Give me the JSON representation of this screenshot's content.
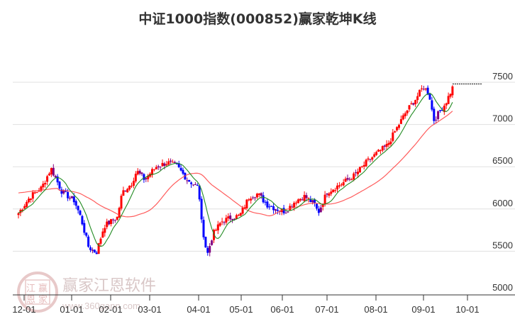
{
  "title": "中证1000指数(000852)赢家乾坤K线",
  "watermark": {
    "name": "赢家江恩软件",
    "url": "www.360gann.com",
    "seal": [
      "江",
      "赢",
      "恩",
      "家"
    ]
  },
  "colors": {
    "up": "#ff0000",
    "down": "#0000ff",
    "neutral": "#800080",
    "ma_short": "#228b22",
    "ma_long": "#ff4040",
    "grid": "#e0e0e0",
    "axis": "#333333",
    "last_price_line": "#000000"
  },
  "chart_data": {
    "type": "candlestick",
    "title": "中证1000指数(000852)赢家乾坤K线",
    "xlabel": "",
    "ylabel": "",
    "ylim": [
      5000,
      7600
    ],
    "y_ticks": [
      5000,
      5500,
      6000,
      6500,
      7000,
      7500
    ],
    "x_ticks": [
      "12-01",
      "01-01",
      "02-01",
      "03-01",
      "04-01",
      "05-01",
      "06-01",
      "07-01",
      "08-01",
      "09-01",
      "10-01"
    ],
    "grid": true,
    "legend": "none",
    "last_price": 7480,
    "series": [
      {
        "name": "close_path_keypoints",
        "points": [
          [
            "11-27",
            5950
          ],
          [
            "12-05",
            6150
          ],
          [
            "12-12",
            6250
          ],
          [
            "12-18",
            6480
          ],
          [
            "12-25",
            6200
          ],
          [
            "01-03",
            6100
          ],
          [
            "01-08",
            5900
          ],
          [
            "01-14",
            5550
          ],
          [
            "01-20",
            5480
          ],
          [
            "01-26",
            5800
          ],
          [
            "02-01",
            5850
          ],
          [
            "02-06",
            5900
          ],
          [
            "02-10",
            6200
          ],
          [
            "02-17",
            6300
          ],
          [
            "02-21",
            6450
          ],
          [
            "02-27",
            6350
          ],
          [
            "03-05",
            6500
          ],
          [
            "03-12",
            6550
          ],
          [
            "03-18",
            6500
          ],
          [
            "03-24",
            6350
          ],
          [
            "03-31",
            6250
          ],
          [
            "04-03",
            5850
          ],
          [
            "04-07",
            5450
          ],
          [
            "04-11",
            5700
          ],
          [
            "04-17",
            5850
          ],
          [
            "04-24",
            5900
          ],
          [
            "04-30",
            5920
          ],
          [
            "05-07",
            6150
          ],
          [
            "05-13",
            6180
          ],
          [
            "05-20",
            6050
          ],
          [
            "05-27",
            6000
          ],
          [
            "06-03",
            5970
          ],
          [
            "06-10",
            6100
          ],
          [
            "06-16",
            6150
          ],
          [
            "06-23",
            6050
          ],
          [
            "06-25",
            5950
          ],
          [
            "07-01",
            6200
          ],
          [
            "07-10",
            6300
          ],
          [
            "07-18",
            6400
          ],
          [
            "07-25",
            6550
          ],
          [
            "08-01",
            6650
          ],
          [
            "08-08",
            6750
          ],
          [
            "08-14",
            6950
          ],
          [
            "08-20",
            7150
          ],
          [
            "08-26",
            7300
          ],
          [
            "09-01",
            7450
          ],
          [
            "09-05",
            7350
          ],
          [
            "09-08",
            7050
          ],
          [
            "09-12",
            7150
          ],
          [
            "09-16",
            7250
          ],
          [
            "09-22",
            7480
          ]
        ]
      },
      {
        "name": "MA_short",
        "color": "#228b22"
      },
      {
        "name": "MA_long",
        "color": "#ff4040"
      }
    ]
  }
}
